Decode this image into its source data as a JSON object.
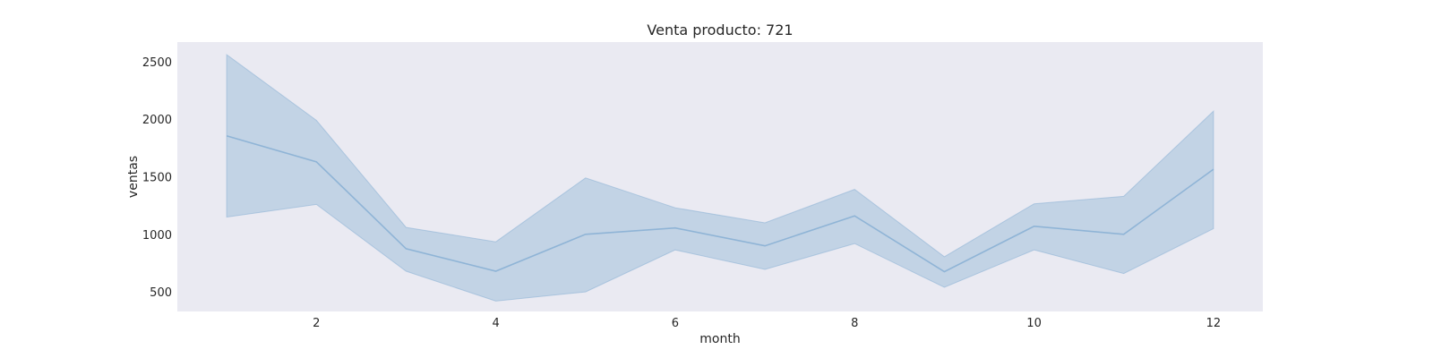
{
  "chart_data": {
    "type": "line",
    "title": "Venta producto: 721",
    "xlabel": "month",
    "ylabel": "ventas",
    "x": [
      1,
      2,
      3,
      4,
      5,
      6,
      7,
      8,
      9,
      10,
      11,
      12
    ],
    "series": [
      {
        "values": [
          1855,
          1630,
          875,
          680,
          1000,
          1055,
          900,
          1160,
          675,
          1070,
          1000,
          1565
        ],
        "lower": [
          1150,
          1260,
          680,
          420,
          500,
          865,
          695,
          920,
          540,
          865,
          660,
          1050
        ],
        "upper": [
          2560,
          1990,
          1060,
          935,
          1490,
          1230,
          1100,
          1390,
          805,
          1265,
          1330,
          2070
        ]
      }
    ],
    "xticks": [
      2,
      4,
      6,
      8,
      10,
      12
    ],
    "yticks": [
      500,
      1000,
      1500,
      2000,
      2500
    ],
    "xlim": [
      0.45,
      12.55
    ],
    "ylim": [
      330,
      2670
    ],
    "grid": false,
    "colors": {
      "line": "#8fb4d6",
      "band": "#c2d3e5",
      "plot_bg": "#eaeaf2"
    }
  }
}
